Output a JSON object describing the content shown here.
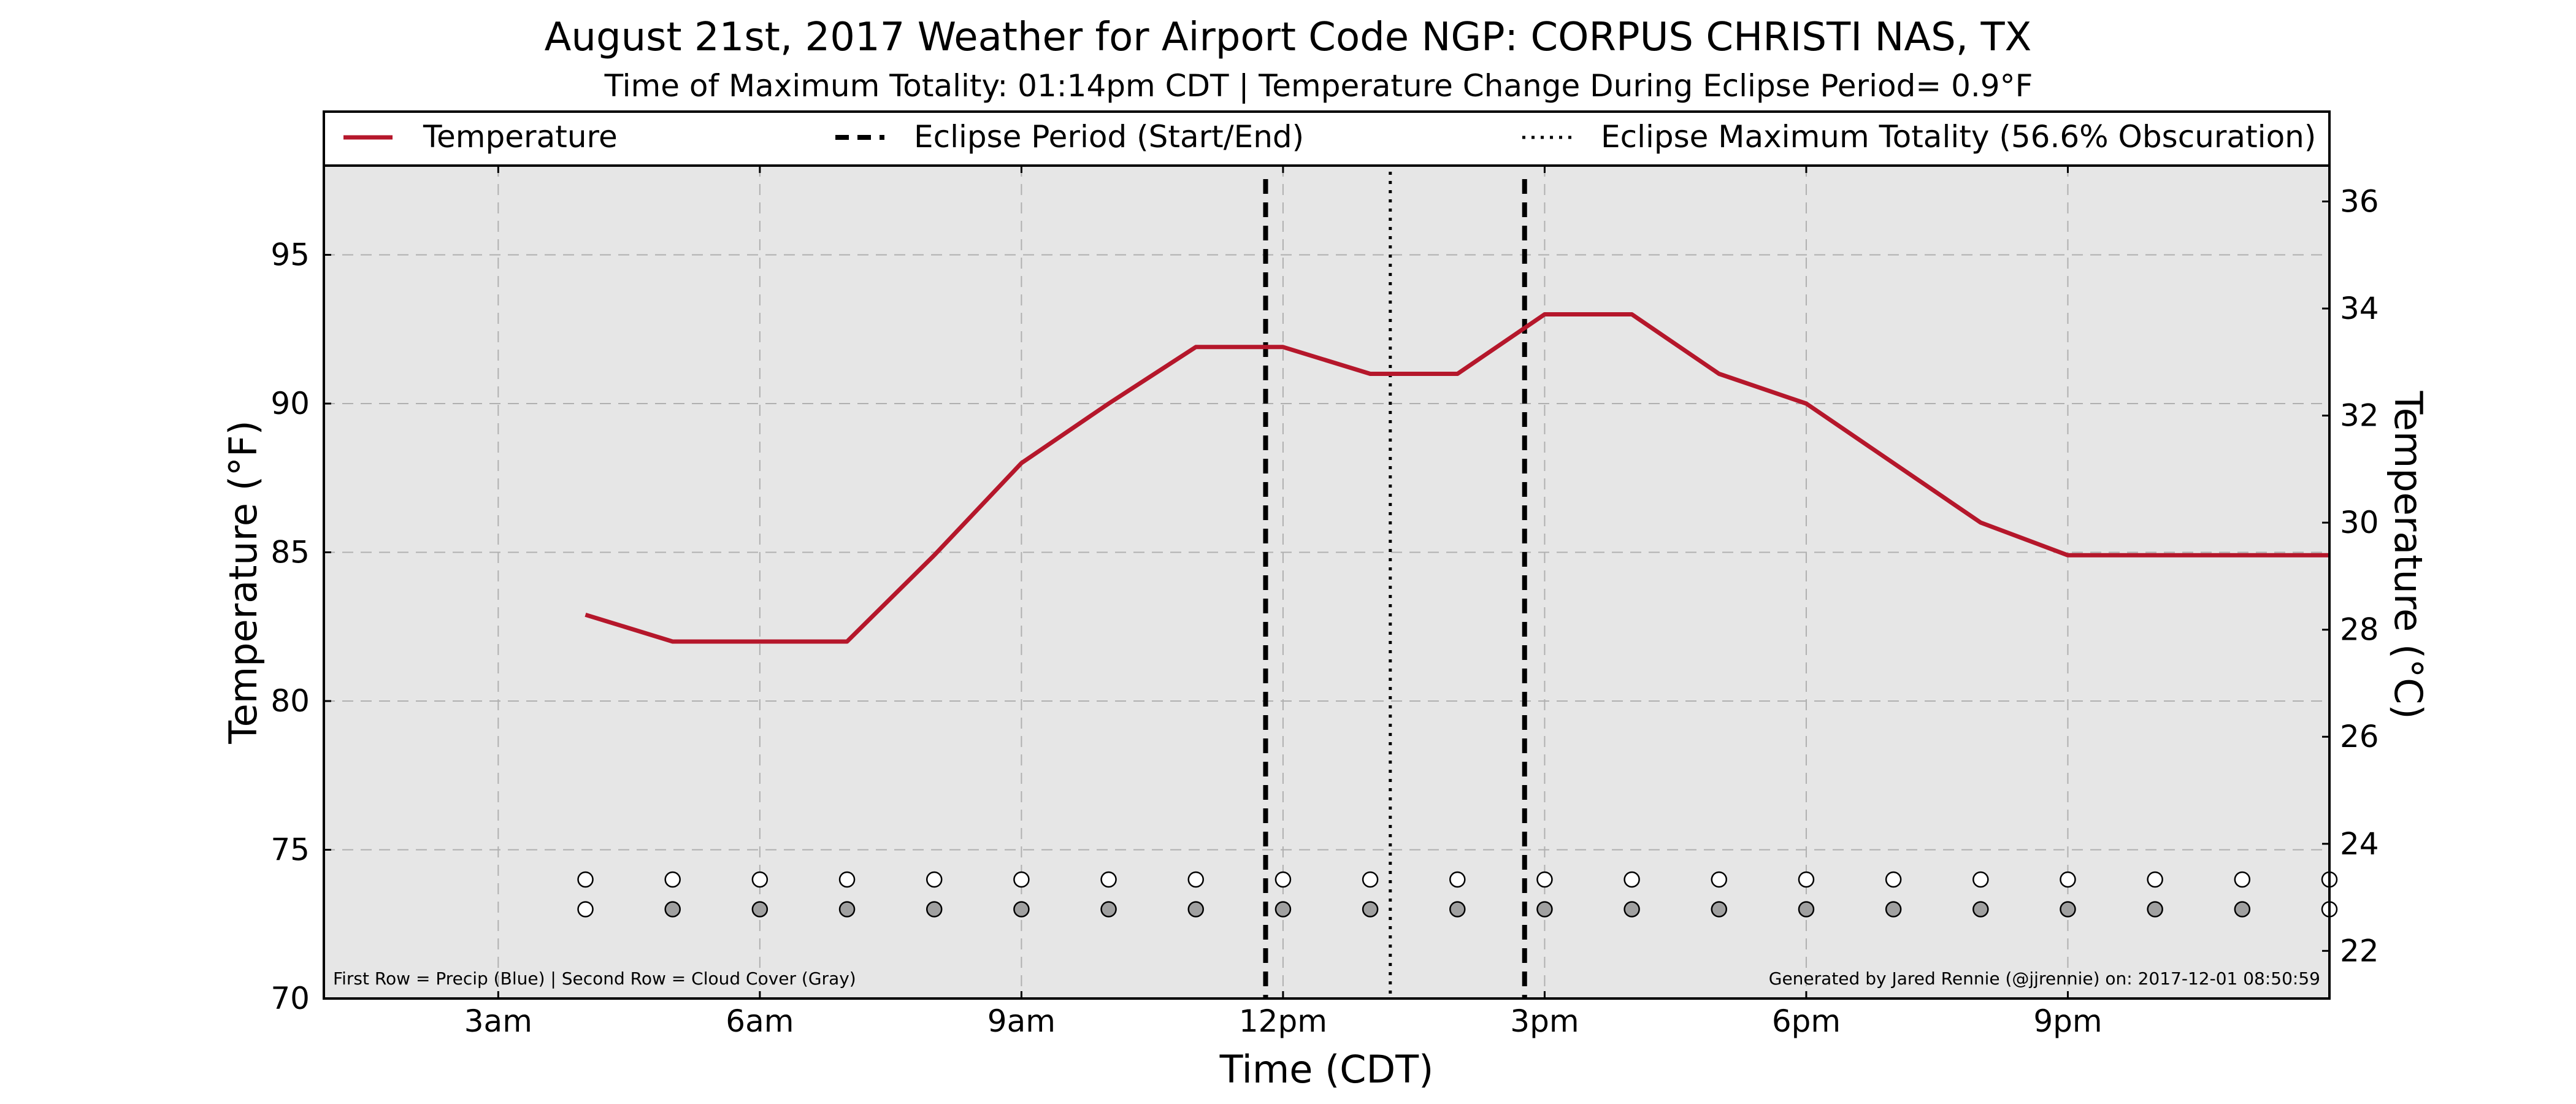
{
  "chart_data": {
    "type": "line",
    "title": "August 21st, 2017 Weather for Airport Code NGP: CORPUS CHRISTI NAS, TX",
    "subtitle": "Time of Maximum Totality: 01:14pm CDT | Temperature Change During Eclipse Period= 0.9°F",
    "xlabel": "Time (CDT)",
    "ylabel": "Temperature (°F)",
    "ylabel_right": "Temperature (°C)",
    "xlim": [
      1,
      24
    ],
    "ylim": [
      70,
      98
    ],
    "ylim_right": [
      21.11,
      36.67
    ],
    "x_ticks": [
      {
        "x": 3,
        "label": "3am"
      },
      {
        "x": 6,
        "label": "6am"
      },
      {
        "x": 9,
        "label": "9am"
      },
      {
        "x": 12,
        "label": "12pm"
      },
      {
        "x": 15,
        "label": "3pm"
      },
      {
        "x": 18,
        "label": "6pm"
      },
      {
        "x": 21,
        "label": "9pm"
      }
    ],
    "y_ticks": [
      70,
      75,
      80,
      85,
      90,
      95
    ],
    "y_ticks_right": [
      22,
      24,
      26,
      28,
      30,
      32,
      34,
      36
    ],
    "grid": true,
    "legend_position": "top",
    "legend": [
      {
        "label": "Temperature",
        "style": "solid"
      },
      {
        "label": "Eclipse Period (Start/End)",
        "style": "dashed"
      },
      {
        "label": "Eclipse Maximum Totality (56.6% Obscuration)",
        "style": "dotted"
      }
    ],
    "series": [
      {
        "name": "Temperature",
        "color": "#b5172b",
        "x": [
          4,
          5,
          6,
          7,
          8,
          9,
          10,
          11,
          12,
          13,
          14,
          15,
          16,
          17,
          18,
          19,
          20,
          21,
          22,
          23,
          24
        ],
        "values": [
          82.9,
          82,
          82,
          82,
          84.9,
          88,
          90,
          91.9,
          91.9,
          91,
          91,
          93,
          93,
          91,
          90,
          88,
          86,
          84.9,
          84.9,
          84.9,
          84.9
        ]
      }
    ],
    "eclipse_start": 11.8,
    "eclipse_end": 14.77,
    "eclipse_max": 13.23,
    "precip_row": {
      "y": 74,
      "x": [
        4,
        5,
        6,
        7,
        8,
        9,
        10,
        11,
        12,
        13,
        14,
        15,
        16,
        17,
        18,
        19,
        20,
        21,
        22,
        23,
        24
      ],
      "color": "#ffffff"
    },
    "cloud_row": {
      "y": 73,
      "x": [
        4,
        5,
        6,
        7,
        8,
        9,
        10,
        11,
        12,
        13,
        14,
        15,
        16,
        17,
        18,
        19,
        20,
        21,
        22,
        23,
        24
      ],
      "values": [
        0,
        1,
        1,
        1,
        1,
        1,
        1,
        1,
        1,
        1,
        1,
        1,
        1,
        1,
        1,
        1,
        1,
        1,
        1,
        1,
        0
      ],
      "color": "#a0a0a0"
    },
    "footnote_left": "First Row = Precip (Blue) | Second Row = Cloud Cover (Gray)",
    "footnote_right": "Generated by Jared Rennie (@jjrennie) on: 2017-12-01 08:50:59",
    "colors": {
      "plot_bg": "#e6e6e6",
      "line": "#b5172b",
      "grid": "#b0b0b0"
    }
  }
}
